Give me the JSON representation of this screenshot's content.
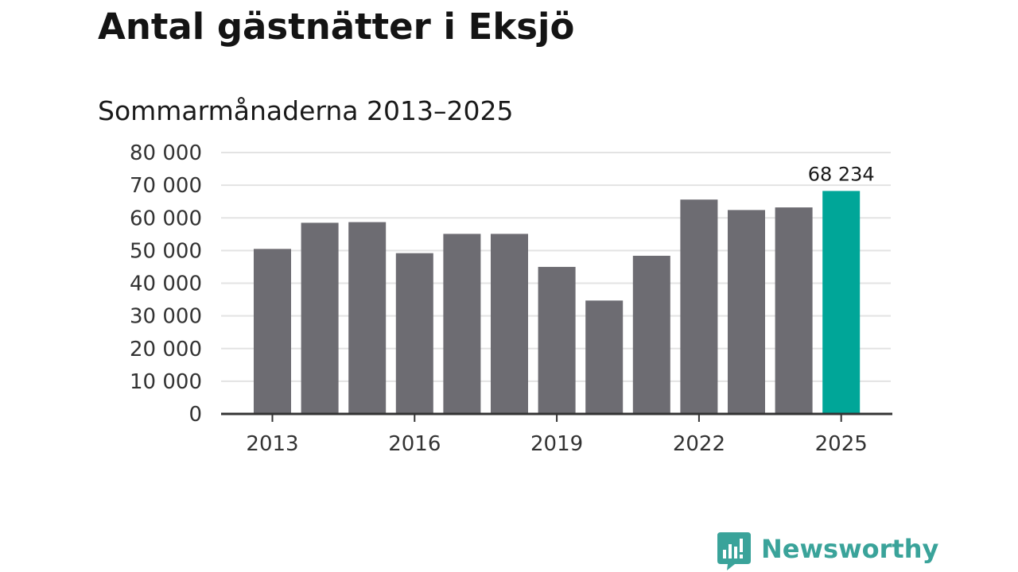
{
  "title": "Antal gästnätter i Eksjö",
  "subtitle": "Sommarmånaderna 2013–2025",
  "brand": {
    "name": "Newsworthy",
    "icon": "newsworthy-logo-icon",
    "color": "#3aa39a"
  },
  "colors": {
    "bar": "#6d6c72",
    "highlight": "#00a698",
    "grid": "#e3e3e3",
    "axis": "#333333"
  },
  "chart_data": {
    "type": "bar",
    "title": "Antal gästnätter i Eksjö",
    "subtitle": "Sommarmånaderna 2013–2025",
    "xlabel": "",
    "ylabel": "",
    "categories": [
      "2013",
      "2014",
      "2015",
      "2016",
      "2017",
      "2018",
      "2019",
      "2020",
      "2021",
      "2022",
      "2023",
      "2024",
      "2025"
    ],
    "values": [
      50500,
      58500,
      58700,
      49200,
      55100,
      55100,
      45000,
      34700,
      48400,
      65600,
      62400,
      63200,
      68234
    ],
    "ylim": [
      0,
      80000
    ],
    "y_ticks": [
      0,
      10000,
      20000,
      30000,
      40000,
      50000,
      60000,
      70000,
      80000
    ],
    "y_tick_labels": [
      "0",
      "10 000",
      "20 000",
      "30 000",
      "40 000",
      "50 000",
      "60 000",
      "70 000",
      "80 000"
    ],
    "x_tick_labels": [
      "2013",
      "2016",
      "2019",
      "2022",
      "2025"
    ],
    "grid": true,
    "highlight": {
      "category": "2025",
      "label": "68 234"
    }
  }
}
